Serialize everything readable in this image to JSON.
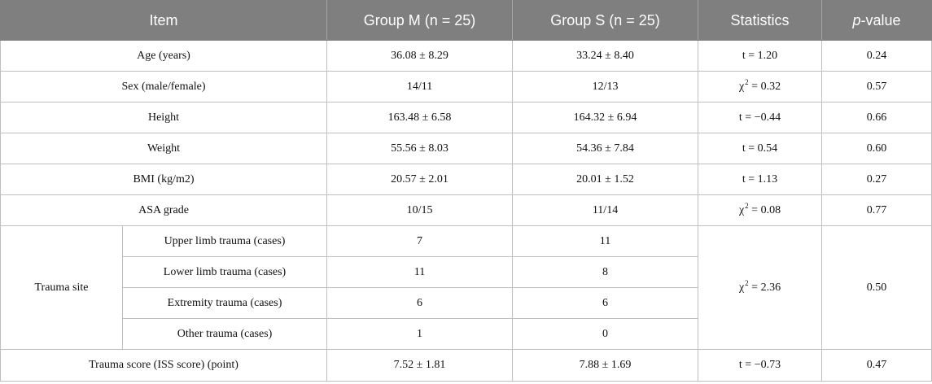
{
  "header": {
    "item": "Item",
    "group_m": "Group M (n = 25)",
    "group_s": "Group S (n = 25)",
    "statistics": "Statistics",
    "p_italic": "p",
    "p_rest": "-value"
  },
  "rows": [
    {
      "item": "Age (years)",
      "m": "36.08 ± 8.29",
      "s": "33.24 ± 8.40",
      "stat": "t = 1.20",
      "p": "0.24"
    },
    {
      "item": "Sex (male/female)",
      "m": "14/11",
      "s": "12/13",
      "stat_symbol": "χ",
      "stat_sup": "2",
      "stat_rest": " = 0.32",
      "p": "0.57"
    },
    {
      "item": "Height",
      "m": "163.48 ± 6.58",
      "s": "164.32 ± 6.94",
      "stat": "t = −0.44",
      "p": "0.66"
    },
    {
      "item": "Weight",
      "m": "55.56 ± 8.03",
      "s": "54.36 ± 7.84",
      "stat": "t = 0.54",
      "p": "0.60"
    },
    {
      "item": "BMI (kg/m2)",
      "m": "20.57 ± 2.01",
      "s": "20.01 ± 1.52",
      "stat": "t = 1.13",
      "p": "0.27"
    },
    {
      "item": "ASA grade",
      "m": "10/15",
      "s": "11/14",
      "stat_symbol": "χ",
      "stat_sup": "2",
      "stat_rest": " = 0.08",
      "p": "0.77"
    }
  ],
  "trauma": {
    "label": "Trauma site",
    "stat_symbol": "χ",
    "stat_sup": "2",
    "stat_rest": " = 2.36",
    "p": "0.50",
    "sub": [
      {
        "label": "Upper limb trauma (cases)",
        "m": "7",
        "s": "11"
      },
      {
        "label": "Lower limb trauma (cases)",
        "m": "11",
        "s": "8"
      },
      {
        "label": "Extremity trauma (cases)",
        "m": "6",
        "s": "6"
      },
      {
        "label": "Other trauma (cases)",
        "m": "1",
        "s": "0"
      }
    ]
  },
  "score_row": {
    "item": "Trauma score (ISS score) (point)",
    "m": "7.52 ± 1.81",
    "s": "7.88 ± 1.69",
    "stat": "t = −0.73",
    "p": "0.47"
  }
}
